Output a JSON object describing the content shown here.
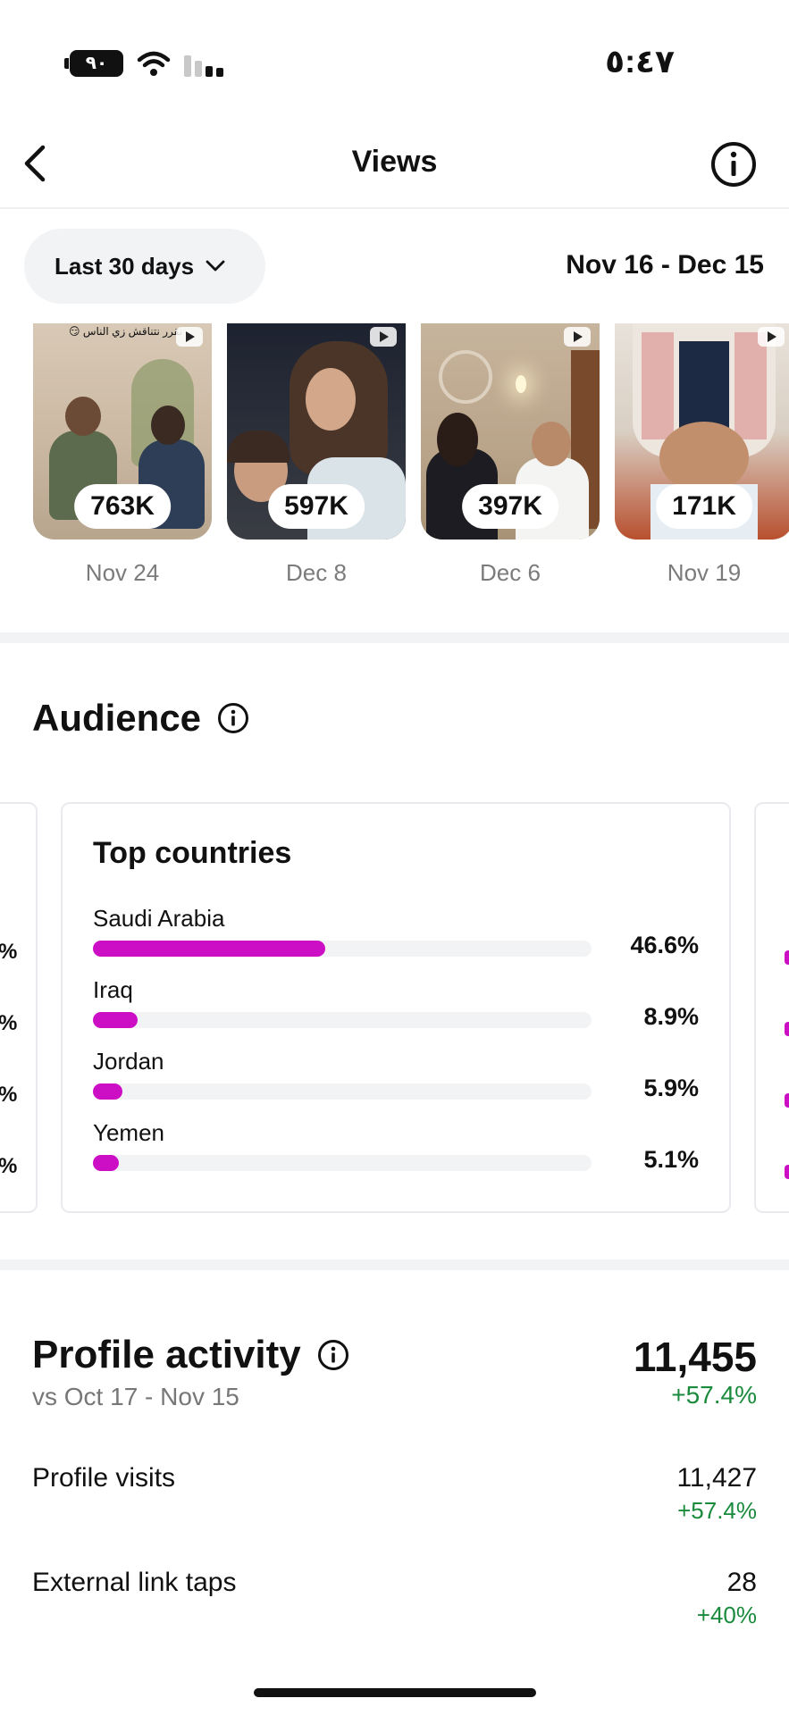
{
  "status_bar": {
    "time": "٥:٤٧",
    "battery": "٩٠"
  },
  "header": {
    "title": "Views"
  },
  "filter": {
    "range_label": "Last 30 days",
    "date_range": "Nov 16 - Dec 15"
  },
  "top_content": [
    {
      "views": "763K",
      "date": "Nov 24",
      "caption": "نقرر نتناقش زي الناس 😏"
    },
    {
      "views": "597K",
      "date": "Dec 8"
    },
    {
      "views": "397K",
      "date": "Dec 6"
    },
    {
      "views": "171K",
      "date": "Nov 19"
    }
  ],
  "audience": {
    "title": "Audience",
    "top_countries": {
      "title": "Top countries",
      "items": [
        {
          "name": "Saudi Arabia",
          "percent": "46.6%",
          "value": 46.6
        },
        {
          "name": "Iraq",
          "percent": "8.9%",
          "value": 8.9
        },
        {
          "name": "Jordan",
          "percent": "5.9%",
          "value": 5.9
        },
        {
          "name": "Yemen",
          "percent": "5.1%",
          "value": 5.1
        }
      ]
    }
  },
  "profile_activity": {
    "title": "Profile activity",
    "comparison": "vs Oct 17 - Nov 15",
    "total": "11,455",
    "total_change": "+57.4%",
    "rows": [
      {
        "label": "Profile visits",
        "value": "11,427",
        "change": "+57.4%"
      },
      {
        "label": "External link taps",
        "value": "28",
        "change": "+40%"
      }
    ]
  },
  "colors": {
    "accent": "#cc0ec4",
    "positive": "#1a8a3c",
    "muted": "#7b7b7b"
  }
}
